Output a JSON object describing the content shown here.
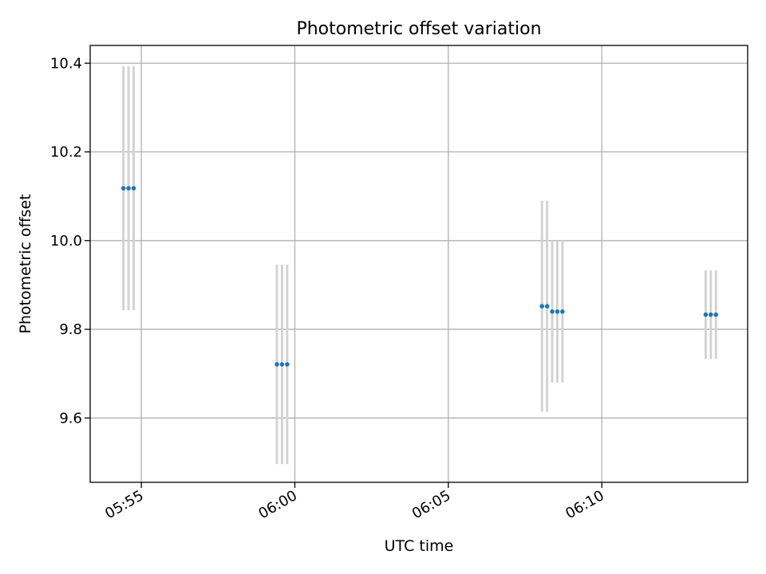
{
  "chart_data": {
    "type": "scatter",
    "title": "Photometric offset variation",
    "xlabel": "UTC time",
    "ylabel": "Photometric offset",
    "x_type": "time",
    "xlim": [
      "05:53:20",
      "06:14:45"
    ],
    "ylim": [
      9.455,
      10.44
    ],
    "x_ticks": [
      "05:55",
      "06:00",
      "06:05",
      "06:10"
    ],
    "y_ticks": [
      9.6,
      9.8,
      10.0,
      10.2,
      10.4
    ],
    "grid": true,
    "error_bar_color": "#d3d3d3",
    "point_color": "#1f77b4",
    "series": [
      {
        "points": [
          {
            "time": "05:54:25",
            "y": 10.118,
            "err": 0.275
          },
          {
            "time": "05:54:35",
            "y": 10.118,
            "err": 0.275
          },
          {
            "time": "05:54:45",
            "y": 10.118,
            "err": 0.275
          },
          {
            "time": "05:59:25",
            "y": 9.721,
            "err": 0.225
          },
          {
            "time": "05:59:35",
            "y": 9.721,
            "err": 0.225
          },
          {
            "time": "05:59:45",
            "y": 9.721,
            "err": 0.225
          },
          {
            "time": "06:08:03",
            "y": 9.852,
            "err": 0.238
          },
          {
            "time": "06:08:13",
            "y": 9.852,
            "err": 0.238
          },
          {
            "time": "06:08:23",
            "y": 9.84,
            "err": 0.16
          },
          {
            "time": "06:08:33",
            "y": 9.84,
            "err": 0.16
          },
          {
            "time": "06:08:43",
            "y": 9.84,
            "err": 0.16
          },
          {
            "time": "06:13:23",
            "y": 9.833,
            "err": 0.1
          },
          {
            "time": "06:13:33",
            "y": 9.833,
            "err": 0.1
          },
          {
            "time": "06:13:43",
            "y": 9.833,
            "err": 0.1
          }
        ]
      }
    ]
  }
}
